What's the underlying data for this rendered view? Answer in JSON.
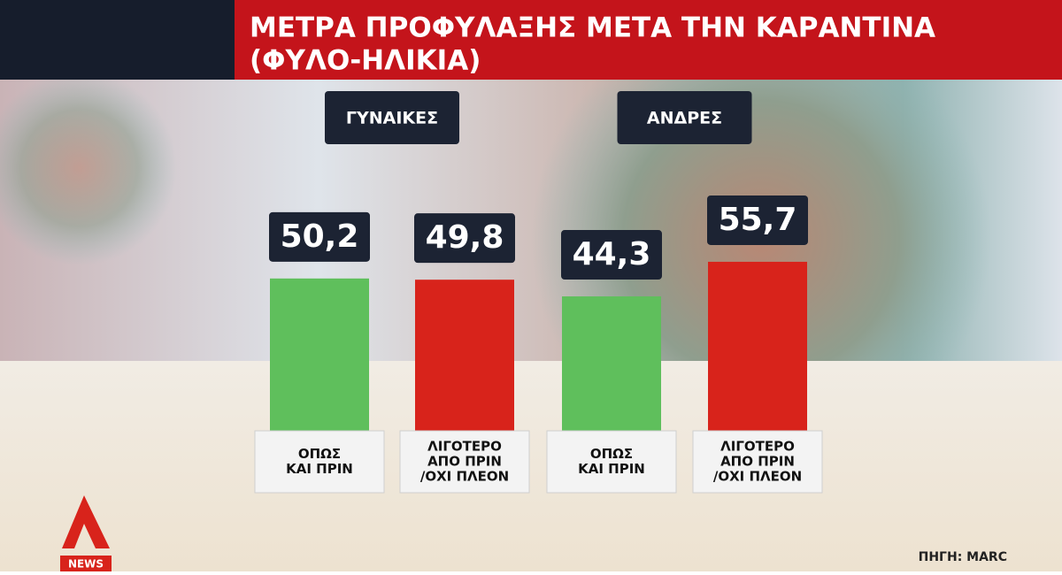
{
  "chart_data": {
    "type": "bar",
    "title": "ΜΕΤΡΑ ΠΡΟΦΥΛΑΞΗΣ ΜΕΤΑ ΤΗΝ ΚΑΡΑΝΤΙΝΑ",
    "subtitle": "(ΦΥΛΟ-ΗΛΙΚΙΑ)",
    "groups": [
      "ΓΥΝΑΙΚΕΣ",
      "ΑΝΔΡΕΣ"
    ],
    "categories": [
      [
        "ΟΠΩΣ",
        "ΚΑΙ ΠΡΙΝ"
      ],
      [
        "ΛΙΓΟΤΕΡΟ",
        "ΑΠΟ ΠΡΙΝ",
        "/ΟΧΙ ΠΛΕΟΝ"
      ],
      [
        "ΟΠΩΣ",
        "ΚΑΙ ΠΡΙΝ"
      ],
      [
        "ΛΙΓΟΤΕΡΟ",
        "ΑΠΟ ΠΡΙΝ",
        "/ΟΧΙ ΠΛΕΟΝ"
      ]
    ],
    "values": [
      50.2,
      49.8,
      44.3,
      55.7
    ],
    "value_labels": [
      "50,2",
      "49,8",
      "44,3",
      "55,7"
    ],
    "colors": [
      "#5fbf5c",
      "#d8231b",
      "#5fbf5c",
      "#d8231b"
    ]
  },
  "source": "ΠΗΓΗ: MARC",
  "logo": {
    "text": "NEWS"
  }
}
